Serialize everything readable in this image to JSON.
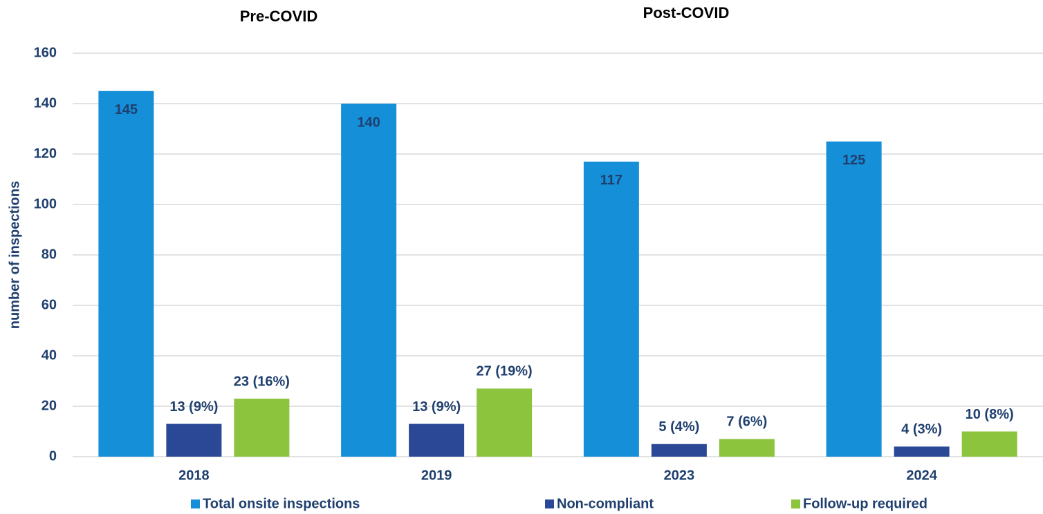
{
  "chart_data": {
    "type": "bar",
    "annotations": [
      "Pre-COVID",
      "Post-COVID"
    ],
    "y_label": "number of inspections",
    "categories": [
      "2018",
      "2019",
      "2023",
      "2024"
    ],
    "series": [
      {
        "name": "Total onsite inspections",
        "color": "#168fd9",
        "values": [
          145,
          140,
          117,
          125
        ]
      },
      {
        "name": "Non-compliant",
        "color": "#2a4896",
        "values": [
          13,
          13,
          5,
          4
        ],
        "value_labels": [
          "13 (9%)",
          "13 (9%)",
          "5 (4%)",
          "4 (3%)"
        ]
      },
      {
        "name": "Follow-up required",
        "color": "#8cc43e",
        "values": [
          23,
          27,
          7,
          10
        ],
        "value_labels": [
          "23 (16%)",
          "27 (19%)",
          "7 (6%)",
          "10 (8%)"
        ]
      }
    ],
    "ylim": [
      0,
      160
    ],
    "yticks": [
      0,
      20,
      40,
      60,
      80,
      100,
      120,
      140,
      160
    ],
    "grid": true,
    "legend": "bottom"
  }
}
